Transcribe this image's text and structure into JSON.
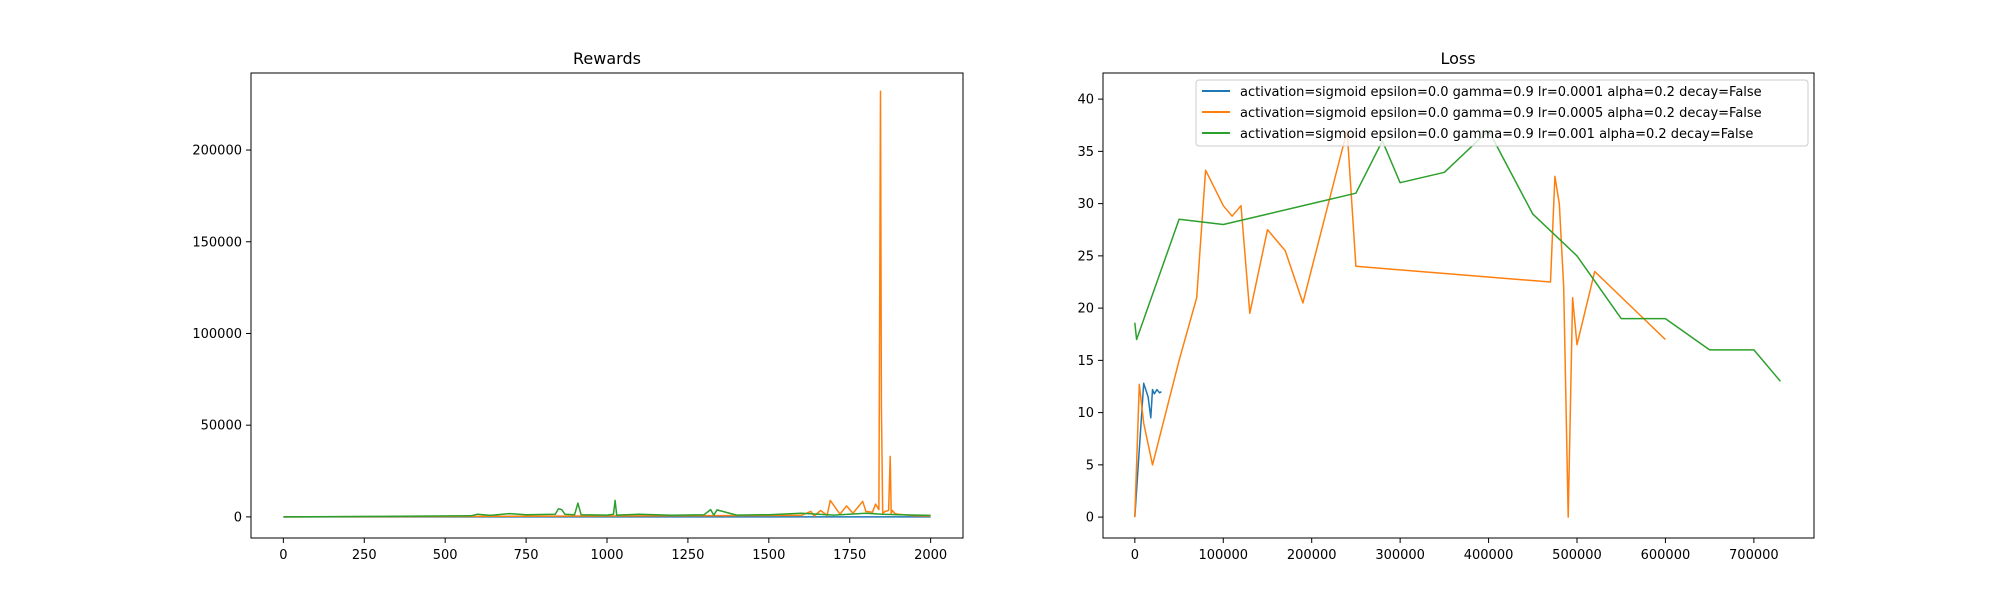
{
  "colors": {
    "series": [
      "#1f77b4",
      "#ff7f0e",
      "#2ca02c"
    ],
    "axis": "#000000",
    "background": "#ffffff"
  },
  "chart_data": [
    {
      "type": "line",
      "title": "Rewards",
      "xlabel": "",
      "ylabel": "",
      "xlim": [
        -100,
        2100
      ],
      "ylim": [
        -11500,
        242000
      ],
      "xticks": [
        0,
        250,
        500,
        750,
        1000,
        1250,
        1500,
        1750,
        2000
      ],
      "xtick_labels": [
        "0",
        "250",
        "500",
        "750",
        "1000",
        "1250",
        "1500",
        "1750",
        "2000"
      ],
      "yticks": [
        0,
        50000,
        100000,
        150000,
        200000
      ],
      "ytick_labels": [
        "0",
        "50000",
        "100000",
        "150000",
        "200000"
      ],
      "grid": false,
      "series": [
        {
          "color": "#1f77b4",
          "x": [
            0,
            1000,
            2000
          ],
          "y": [
            0,
            0,
            0
          ]
        },
        {
          "color": "#ff7f0e",
          "x": [
            0,
            600,
            1600,
            1630,
            1640,
            1660,
            1680,
            1690,
            1720,
            1740,
            1760,
            1790,
            1800,
            1820,
            1830,
            1840,
            1842,
            1845,
            1848,
            1852,
            1860,
            1870,
            1875,
            1878,
            1882,
            1890,
            1900,
            1950,
            2000
          ],
          "y": [
            0,
            300,
            800,
            3000,
            500,
            3500,
            800,
            9000,
            1500,
            6000,
            2000,
            8500,
            3000,
            2500,
            7000,
            4000,
            90000,
            232000,
            60000,
            2000,
            3000,
            3500,
            33000,
            2000,
            3500,
            1800,
            1500,
            600,
            500
          ]
        },
        {
          "color": "#2ca02c",
          "x": [
            0,
            300,
            580,
            600,
            640,
            700,
            750,
            840,
            850,
            860,
            870,
            900,
            910,
            920,
            1000,
            1020,
            1025,
            1030,
            1100,
            1200,
            1300,
            1320,
            1330,
            1340,
            1400,
            1500,
            1600,
            1700,
            1800,
            1850,
            1900,
            2000
          ],
          "y": [
            0,
            300,
            600,
            1500,
            800,
            1800,
            1200,
            1500,
            4500,
            4000,
            1500,
            1200,
            7500,
            1200,
            1000,
            1500,
            9000,
            1000,
            1500,
            900,
            1200,
            4000,
            1000,
            3800,
            1000,
            1200,
            2000,
            1000,
            2000,
            1500,
            1200,
            800
          ]
        }
      ]
    },
    {
      "type": "line",
      "title": "Loss",
      "xlabel": "",
      "ylabel": "",
      "xlim": [
        -36000,
        768000
      ],
      "ylim": [
        -2,
        42.5
      ],
      "xticks": [
        0,
        100000,
        200000,
        300000,
        400000,
        500000,
        600000,
        700000
      ],
      "xtick_labels": [
        "0",
        "100000",
        "200000",
        "300000",
        "400000",
        "500000",
        "600000",
        "700000"
      ],
      "yticks": [
        0,
        5,
        10,
        15,
        20,
        25,
        30,
        35,
        40
      ],
      "ytick_labels": [
        "0",
        "5",
        "10",
        "15",
        "20",
        "25",
        "30",
        "35",
        "40"
      ],
      "grid": false,
      "legend_position": "top-right",
      "series": [
        {
          "name": "activation=sigmoid epsilon=0.0 gamma=0.9 lr=0.0001 alpha=0.2 decay=False",
          "color": "#1f77b4",
          "x": [
            0,
            10000,
            15000,
            18000,
            20000,
            22000,
            25000,
            28000,
            30000
          ],
          "y": [
            0,
            12.8,
            11.5,
            9.5,
            12.2,
            11.8,
            12.2,
            11.9,
            12.0
          ]
        },
        {
          "name": "activation=sigmoid epsilon=0.0 gamma=0.9 lr=0.0005 alpha=0.2 decay=False",
          "color": "#ff7f0e",
          "x": [
            0,
            5000,
            10000,
            20000,
            50000,
            70000,
            80000,
            100000,
            110000,
            120000,
            130000,
            150000,
            170000,
            190000,
            240000,
            250000,
            470000,
            475000,
            480000,
            485000,
            490000,
            495000,
            500000,
            520000,
            600000
          ],
          "y": [
            0,
            12.7,
            9,
            5,
            15,
            21,
            33.2,
            29.8,
            28.8,
            29.8,
            19.5,
            27.5,
            25.5,
            20.5,
            37,
            24,
            22.5,
            32.6,
            30,
            22,
            0,
            21,
            16.5,
            23.5,
            17
          ]
        },
        {
          "name": "activation=sigmoid epsilon=0.0 gamma=0.9 lr=0.001 alpha=0.2 decay=False",
          "color": "#2ca02c",
          "x": [
            0,
            2000,
            50000,
            100000,
            150000,
            200000,
            250000,
            280000,
            300000,
            350000,
            400000,
            450000,
            500000,
            550000,
            600000,
            650000,
            700000,
            730000
          ],
          "y": [
            18.6,
            17,
            28.5,
            28,
            29,
            30,
            31,
            36,
            32,
            33,
            37,
            29,
            25,
            19,
            19,
            16,
            16,
            13
          ]
        }
      ]
    }
  ]
}
